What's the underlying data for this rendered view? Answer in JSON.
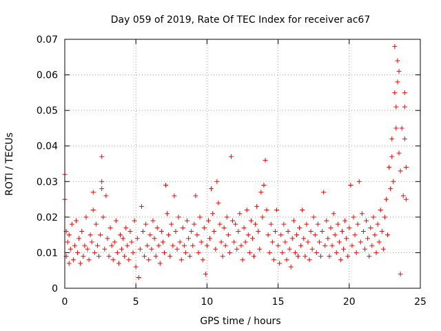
{
  "chart_data": {
    "type": "scatter",
    "title": "Day 059 of 2019, Rate Of TEC Index for receiver ac67",
    "xlabel": "GPS time / hours",
    "ylabel": "ROTI / TECUs",
    "xlim": [
      0,
      25
    ],
    "ylim": [
      0,
      0.07
    ],
    "xticks": [
      0,
      5,
      10,
      15,
      20,
      25
    ],
    "xtick_labels": [
      "0",
      "5",
      "10",
      "15",
      "20",
      "25"
    ],
    "yticks": [
      0,
      0.01,
      0.02,
      0.03,
      0.04,
      0.05,
      0.06,
      0.07
    ],
    "ytick_labels": [
      "0",
      "0.01",
      "0.02",
      "0.03",
      "0.04",
      "0.05",
      "0.06",
      "0.07"
    ],
    "grid": true,
    "marker": "+",
    "color": "#ff0000",
    "series": [
      {
        "name": "ROTI",
        "points": [
          [
            0.0,
            0.032
          ],
          [
            0.0,
            0.025
          ],
          [
            0.1,
            0.016
          ],
          [
            0.1,
            0.009
          ],
          [
            0.2,
            0.013
          ],
          [
            0.3,
            0.007
          ],
          [
            0.3,
            0.015
          ],
          [
            0.4,
            0.011
          ],
          [
            0.5,
            0.018
          ],
          [
            0.6,
            0.008
          ],
          [
            0.7,
            0.012
          ],
          [
            0.8,
            0.019
          ],
          [
            0.9,
            0.01
          ],
          [
            1.0,
            0.014
          ],
          [
            1.1,
            0.007
          ],
          [
            1.2,
            0.016
          ],
          [
            1.3,
            0.009
          ],
          [
            1.4,
            0.012
          ],
          [
            1.5,
            0.02
          ],
          [
            1.6,
            0.011
          ],
          [
            1.7,
            0.008
          ],
          [
            1.8,
            0.015
          ],
          [
            1.9,
            0.013
          ],
          [
            2.0,
            0.027
          ],
          [
            2.0,
            0.022
          ],
          [
            2.1,
            0.01
          ],
          [
            2.2,
            0.018
          ],
          [
            2.3,
            0.012
          ],
          [
            2.4,
            0.009
          ],
          [
            2.5,
            0.015
          ],
          [
            2.6,
            0.037
          ],
          [
            2.6,
            0.03
          ],
          [
            2.6,
            0.028
          ],
          [
            2.7,
            0.02
          ],
          [
            2.8,
            0.011
          ],
          [
            2.9,
            0.026
          ],
          [
            3.0,
            0.014
          ],
          [
            3.1,
            0.009
          ],
          [
            3.2,
            0.017
          ],
          [
            3.3,
            0.012
          ],
          [
            3.4,
            0.008
          ],
          [
            3.5,
            0.013
          ],
          [
            3.6,
            0.019
          ],
          [
            3.7,
            0.01
          ],
          [
            3.8,
            0.007
          ],
          [
            3.9,
            0.015
          ],
          [
            4.0,
            0.011
          ],
          [
            4.1,
            0.014
          ],
          [
            4.2,
            0.009
          ],
          [
            4.3,
            0.017
          ],
          [
            4.4,
            0.012
          ],
          [
            4.5,
            0.008
          ],
          [
            4.6,
            0.016
          ],
          [
            4.7,
            0.013
          ],
          [
            4.8,
            0.01
          ],
          [
            4.9,
            0.019
          ],
          [
            5.0,
            0.006
          ],
          [
            5.1,
            0.014
          ],
          [
            5.2,
            0.003
          ],
          [
            5.3,
            0.011
          ],
          [
            5.4,
            0.023
          ],
          [
            5.5,
            0.016
          ],
          [
            5.6,
            0.009
          ],
          [
            5.7,
            0.018
          ],
          [
            5.8,
            0.012
          ],
          [
            5.9,
            0.008
          ],
          [
            6.0,
            0.015
          ],
          [
            6.1,
            0.011
          ],
          [
            6.2,
            0.019
          ],
          [
            6.3,
            0.014
          ],
          [
            6.4,
            0.009
          ],
          [
            6.5,
            0.017
          ],
          [
            6.6,
            0.012
          ],
          [
            6.7,
            0.007
          ],
          [
            6.8,
            0.016
          ],
          [
            6.9,
            0.013
          ],
          [
            7.0,
            0.01
          ],
          [
            7.1,
            0.029
          ],
          [
            7.2,
            0.021
          ],
          [
            7.3,
            0.015
          ],
          [
            7.4,
            0.009
          ],
          [
            7.5,
            0.018
          ],
          [
            7.6,
            0.012
          ],
          [
            7.7,
            0.026
          ],
          [
            7.8,
            0.016
          ],
          [
            7.9,
            0.011
          ],
          [
            8.0,
            0.02
          ],
          [
            8.1,
            0.013
          ],
          [
            8.2,
            0.008
          ],
          [
            8.3,
            0.017
          ],
          [
            8.4,
            0.012
          ],
          [
            8.5,
            0.01
          ],
          [
            8.6,
            0.019
          ],
          [
            8.7,
            0.014
          ],
          [
            8.8,
            0.009
          ],
          [
            8.9,
            0.016
          ],
          [
            9.0,
            0.012
          ],
          [
            9.1,
            0.018
          ],
          [
            9.2,
            0.026
          ],
          [
            9.3,
            0.015
          ],
          [
            9.4,
            0.01
          ],
          [
            9.5,
            0.02
          ],
          [
            9.6,
            0.013
          ],
          [
            9.7,
            0.008
          ],
          [
            9.8,
            0.017
          ],
          [
            9.9,
            0.004
          ],
          [
            10.0,
            0.012
          ],
          [
            10.1,
            0.019
          ],
          [
            10.2,
            0.014
          ],
          [
            10.3,
            0.028
          ],
          [
            10.4,
            0.021
          ],
          [
            10.5,
            0.016
          ],
          [
            10.6,
            0.011
          ],
          [
            10.7,
            0.03
          ],
          [
            10.8,
            0.024
          ],
          [
            10.9,
            0.018
          ],
          [
            11.0,
            0.013
          ],
          [
            11.1,
            0.009
          ],
          [
            11.2,
            0.017
          ],
          [
            11.3,
            0.012
          ],
          [
            11.4,
            0.02
          ],
          [
            11.5,
            0.015
          ],
          [
            11.6,
            0.01
          ],
          [
            11.7,
            0.037
          ],
          [
            11.8,
            0.019
          ],
          [
            11.9,
            0.013
          ],
          [
            12.0,
            0.018
          ],
          [
            12.1,
            0.011
          ],
          [
            12.2,
            0.016
          ],
          [
            12.3,
            0.021
          ],
          [
            12.4,
            0.012
          ],
          [
            12.5,
            0.008
          ],
          [
            12.6,
            0.017
          ],
          [
            12.7,
            0.013
          ],
          [
            12.8,
            0.022
          ],
          [
            12.9,
            0.015
          ],
          [
            13.0,
            0.01
          ],
          [
            13.1,
            0.019
          ],
          [
            13.2,
            0.014
          ],
          [
            13.3,
            0.009
          ],
          [
            13.4,
            0.018
          ],
          [
            13.5,
            0.023
          ],
          [
            13.6,
            0.016
          ],
          [
            13.7,
            0.011
          ],
          [
            13.8,
            0.027
          ],
          [
            13.9,
            0.02
          ],
          [
            14.0,
            0.029
          ],
          [
            14.1,
            0.036
          ],
          [
            14.2,
            0.022
          ],
          [
            14.3,
            0.015
          ],
          [
            14.4,
            0.01
          ],
          [
            14.5,
            0.018
          ],
          [
            14.6,
            0.013
          ],
          [
            14.7,
            0.008
          ],
          [
            14.8,
            0.016
          ],
          [
            14.9,
            0.022
          ],
          [
            15.0,
            0.012
          ],
          [
            15.1,
            0.007
          ],
          [
            15.2,
            0.015
          ],
          [
            15.3,
            0.01
          ],
          [
            15.4,
            0.018
          ],
          [
            15.5,
            0.013
          ],
          [
            15.6,
            0.008
          ],
          [
            15.7,
            0.016
          ],
          [
            15.8,
            0.011
          ],
          [
            15.9,
            0.006
          ],
          [
            16.0,
            0.014
          ],
          [
            16.1,
            0.019
          ],
          [
            16.2,
            0.01
          ],
          [
            16.3,
            0.015
          ],
          [
            16.4,
            0.009
          ],
          [
            16.5,
            0.017
          ],
          [
            16.6,
            0.012
          ],
          [
            16.7,
            0.022
          ],
          [
            16.8,
            0.014
          ],
          [
            16.9,
            0.009
          ],
          [
            17.0,
            0.018
          ],
          [
            17.1,
            0.013
          ],
          [
            17.2,
            0.008
          ],
          [
            17.3,
            0.016
          ],
          [
            17.4,
            0.011
          ],
          [
            17.5,
            0.02
          ],
          [
            17.6,
            0.015
          ],
          [
            17.7,
            0.01
          ],
          [
            17.8,
            0.018
          ],
          [
            17.9,
            0.013
          ],
          [
            18.0,
            0.009
          ],
          [
            18.1,
            0.016
          ],
          [
            18.2,
            0.027
          ],
          [
            18.3,
            0.012
          ],
          [
            18.4,
            0.019
          ],
          [
            18.5,
            0.014
          ],
          [
            18.6,
            0.009
          ],
          [
            18.7,
            0.017
          ],
          [
            18.8,
            0.012
          ],
          [
            18.9,
            0.021
          ],
          [
            19.0,
            0.015
          ],
          [
            19.1,
            0.01
          ],
          [
            19.2,
            0.018
          ],
          [
            19.3,
            0.013
          ],
          [
            19.4,
            0.008
          ],
          [
            19.5,
            0.016
          ],
          [
            19.6,
            0.011
          ],
          [
            19.7,
            0.019
          ],
          [
            19.8,
            0.014
          ],
          [
            19.9,
            0.009
          ],
          [
            20.0,
            0.017
          ],
          [
            20.1,
            0.029
          ],
          [
            20.2,
            0.012
          ],
          [
            20.3,
            0.02
          ],
          [
            20.4,
            0.015
          ],
          [
            20.5,
            0.01
          ],
          [
            20.6,
            0.018
          ],
          [
            20.7,
            0.03
          ],
          [
            20.8,
            0.013
          ],
          [
            20.9,
            0.021
          ],
          [
            21.0,
            0.016
          ],
          [
            21.1,
            0.011
          ],
          [
            21.2,
            0.019
          ],
          [
            21.3,
            0.014
          ],
          [
            21.4,
            0.009
          ],
          [
            21.5,
            0.017
          ],
          [
            21.6,
            0.012
          ],
          [
            21.7,
            0.02
          ],
          [
            21.8,
            0.015
          ],
          [
            21.9,
            0.01
          ],
          [
            22.0,
            0.018
          ],
          [
            22.1,
            0.013
          ],
          [
            22.2,
            0.022
          ],
          [
            22.3,
            0.016
          ],
          [
            22.4,
            0.011
          ],
          [
            22.5,
            0.02
          ],
          [
            22.6,
            0.025
          ],
          [
            22.7,
            0.015
          ],
          [
            22.8,
            0.034
          ],
          [
            22.9,
            0.028
          ],
          [
            23.0,
            0.042
          ],
          [
            23.0,
            0.037
          ],
          [
            23.1,
            0.03
          ],
          [
            23.2,
            0.068
          ],
          [
            23.2,
            0.055
          ],
          [
            23.3,
            0.051
          ],
          [
            23.3,
            0.045
          ],
          [
            23.4,
            0.064
          ],
          [
            23.4,
            0.058
          ],
          [
            23.5,
            0.061
          ],
          [
            23.5,
            0.038
          ],
          [
            23.6,
            0.033
          ],
          [
            23.6,
            0.004
          ],
          [
            23.7,
            0.045
          ],
          [
            23.8,
            0.026
          ],
          [
            23.9,
            0.055
          ],
          [
            23.9,
            0.051
          ],
          [
            23.9,
            0.042
          ],
          [
            24.0,
            0.034
          ],
          [
            24.0,
            0.025
          ]
        ]
      }
    ]
  }
}
